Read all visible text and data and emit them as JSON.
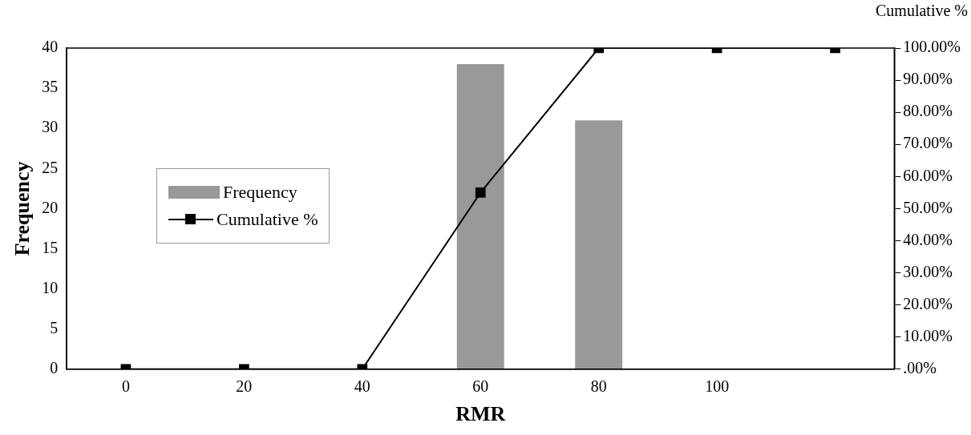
{
  "chart_data": {
    "type": "bar",
    "xlabel": "RMR",
    "ylabel": "Frequency",
    "y2label": "Cumulative %",
    "categories": [
      "0",
      "20",
      "40",
      "60",
      "80",
      "100",
      null
    ],
    "series": [
      {
        "name": "Frequency",
        "color": "#999999",
        "values": [
          0,
          0,
          0,
          38,
          31,
          0,
          0
        ]
      },
      {
        "name": "Cumulative %",
        "type": "line",
        "axis": "y2",
        "color": "#000000",
        "marker": "square",
        "values": [
          0,
          0,
          0,
          55,
          100,
          100,
          100
        ]
      }
    ],
    "ylim": [
      0,
      40
    ],
    "yticks": [
      0,
      5,
      10,
      15,
      20,
      25,
      30,
      35,
      40
    ],
    "y2lim": [
      0,
      100
    ],
    "y2ticks": [
      {
        "value": 0,
        "label": ".00%"
      },
      {
        "value": 10,
        "label": "10.00%"
      },
      {
        "value": 20,
        "label": "20.00%"
      },
      {
        "value": 30,
        "label": "30.00%"
      },
      {
        "value": 40,
        "label": "40.00%"
      },
      {
        "value": 50,
        "label": "50.00%"
      },
      {
        "value": 60,
        "label": "60.00%"
      },
      {
        "value": 70,
        "label": "70.00%"
      },
      {
        "value": 80,
        "label": "80.00%"
      },
      {
        "value": 90,
        "label": "90.00%"
      },
      {
        "value": 100,
        "label": "100.00%"
      }
    ],
    "legend": "left"
  }
}
